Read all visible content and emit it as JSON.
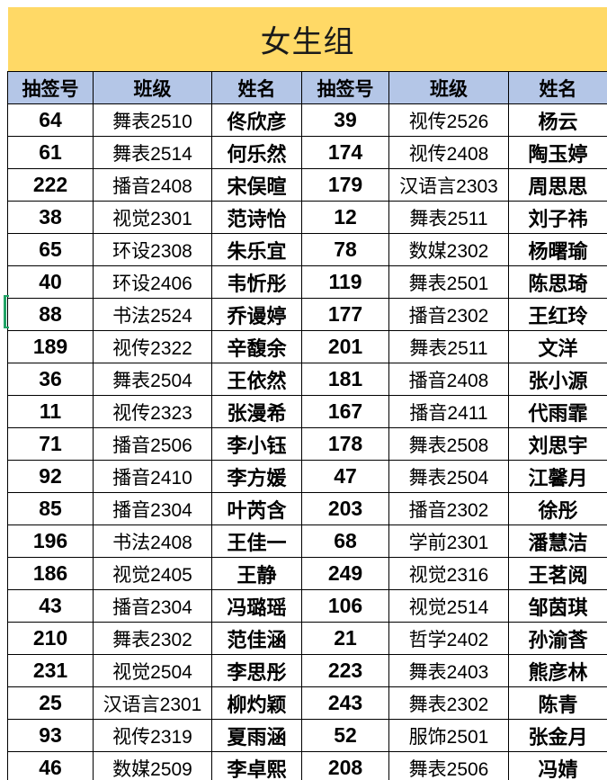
{
  "title": "女生组",
  "columns": [
    "抽签号",
    "班级",
    "姓名",
    "抽签号",
    "班级",
    "姓名"
  ],
  "rows": [
    [
      "64",
      "舞表2510",
      "佟欣彦",
      "39",
      "视传2526",
      "杨云"
    ],
    [
      "61",
      "舞表2514",
      "何乐然",
      "174",
      "视传2408",
      "陶玉婷"
    ],
    [
      "222",
      "播音2408",
      "宋俣暄",
      "179",
      "汉语言2303",
      "周思思"
    ],
    [
      "38",
      "视觉2301",
      "范诗怡",
      "12",
      "舞表2511",
      "刘子祎"
    ],
    [
      "65",
      "环设2308",
      "朱乐宜",
      "78",
      "数媒2302",
      "杨曙瑜"
    ],
    [
      "40",
      "环设2406",
      "韦忻彤",
      "119",
      "舞表2501",
      "陈思琦"
    ],
    [
      "88",
      "书法2524",
      "乔谩婷",
      "177",
      "播音2302",
      "王红玲"
    ],
    [
      "189",
      "视传2322",
      "辛馥余",
      "201",
      "舞表2511",
      "文洋"
    ],
    [
      "36",
      "舞表2504",
      "王依然",
      "181",
      "播音2408",
      "张小源"
    ],
    [
      "11",
      "视传2323",
      "张漫希",
      "167",
      "播音2411",
      "代雨霏"
    ],
    [
      "71",
      "播音2506",
      "李小钰",
      "178",
      "舞表2508",
      "刘思宇"
    ],
    [
      "92",
      "播音2410",
      "李方媛",
      "47",
      "舞表2504",
      "江馨月"
    ],
    [
      "85",
      "播音2304",
      "叶芮含",
      "203",
      "播音2302",
      "徐彤"
    ],
    [
      "196",
      "书法2408",
      "王佳一",
      "68",
      "学前2301",
      "潘慧洁"
    ],
    [
      "186",
      "视觉2405",
      "王静",
      "249",
      "视觉2316",
      "王茗阅"
    ],
    [
      "43",
      "播音2304",
      "冯璐瑶",
      "106",
      "视觉2514",
      "邹茵琪"
    ],
    [
      "210",
      "舞表2302",
      "范佳涵",
      "21",
      "哲学2402",
      "孙渝莟"
    ],
    [
      "231",
      "视觉2504",
      "李思彤",
      "223",
      "舞表2403",
      "熊彦林"
    ],
    [
      "25",
      "汉语言2301",
      "柳灼颖",
      "243",
      "舞表2302",
      "陈青"
    ],
    [
      "93",
      "视传2319",
      "夏雨涵",
      "52",
      "服饰2501",
      "张金月"
    ],
    [
      "46",
      "数媒2509",
      "李卓熙",
      "208",
      "舞表2506",
      "冯婧"
    ]
  ],
  "selected_row_index": 6,
  "colors": {
    "title_bg": "#FFD966",
    "header_bg": "#B4C6E7",
    "grid_line": "#000000",
    "selection_green": "#21A366"
  }
}
